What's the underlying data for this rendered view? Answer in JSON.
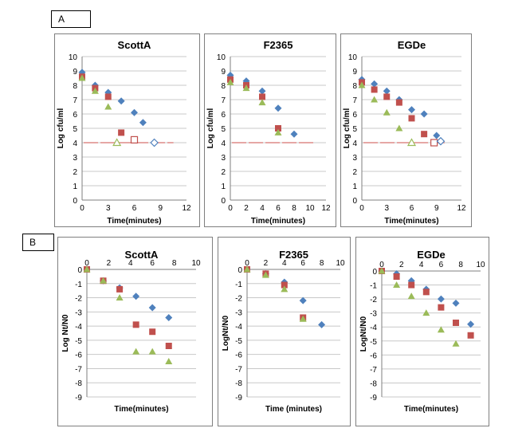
{
  "panel_labels": {
    "A": "A",
    "B": "B"
  },
  "colors": {
    "blue": "#4f81bd",
    "red": "#c0504d",
    "green": "#9bbb59",
    "grid": "#c8c8c8",
    "axis": "#7f7f7f"
  },
  "chart_data": [
    {
      "id": "A-ScottA",
      "type": "scatter",
      "title": "ScottA",
      "xlabel": "Time(minutes)",
      "ylabel": "Log cfu/ml",
      "xlim": [
        0,
        12
      ],
      "ylim": [
        0,
        10
      ],
      "xticks": [
        0,
        3,
        6,
        9,
        12
      ],
      "yticks": [
        0,
        1,
        2,
        3,
        4,
        5,
        6,
        7,
        8,
        9,
        10
      ],
      "series": [
        {
          "name": "blue",
          "marker": "diamond",
          "x": [
            0,
            1.5,
            3,
            4.5,
            6,
            7
          ],
          "y": [
            8.9,
            8.0,
            7.5,
            6.9,
            6.1,
            5.4
          ]
        },
        {
          "name": "red",
          "marker": "square",
          "x": [
            0,
            1.5,
            3,
            4.5
          ],
          "y": [
            8.6,
            7.8,
            7.2,
            4.7
          ]
        },
        {
          "name": "green",
          "marker": "triangle",
          "x": [
            0,
            1.5,
            3
          ],
          "y": [
            8.5,
            7.6,
            6.5
          ]
        },
        {
          "name": "green-open",
          "marker": "triangle-open",
          "x": [
            4
          ],
          "y": [
            4.0
          ]
        },
        {
          "name": "red-open",
          "marker": "square-open",
          "x": [
            6
          ],
          "y": [
            4.2
          ]
        },
        {
          "name": "blue-open",
          "marker": "diamond-open",
          "x": [
            8.3
          ],
          "y": [
            4.0
          ]
        }
      ],
      "detection_limit": {
        "y": 4.0,
        "x_end": 10.5
      }
    },
    {
      "id": "A-F2365",
      "type": "scatter",
      "title": "F2365",
      "xlabel": "Time(minutes)",
      "ylabel": "Log cfu/ml",
      "xlim": [
        0,
        12
      ],
      "ylim": [
        0,
        10
      ],
      "xticks": [
        0,
        2,
        4,
        6,
        8,
        10,
        12
      ],
      "yticks": [
        0,
        1,
        2,
        3,
        4,
        5,
        6,
        7,
        8,
        9,
        10
      ],
      "series": [
        {
          "name": "blue",
          "marker": "diamond",
          "x": [
            0,
            2,
            4,
            6,
            8
          ],
          "y": [
            8.7,
            8.3,
            7.6,
            6.4,
            4.6
          ]
        },
        {
          "name": "red",
          "marker": "square",
          "x": [
            0,
            2,
            4,
            6
          ],
          "y": [
            8.4,
            8.0,
            7.2,
            5.0
          ]
        },
        {
          "name": "green",
          "marker": "triangle",
          "x": [
            0,
            2,
            4,
            6
          ],
          "y": [
            8.2,
            7.8,
            6.8,
            4.7
          ]
        }
      ],
      "detection_limit": {
        "y": 4.0,
        "x_end": 10.5
      }
    },
    {
      "id": "A-EGDe",
      "type": "scatter",
      "title": "EGDe",
      "xlabel": "Time(minutes)",
      "ylabel": "Log cfu/ml",
      "xlim": [
        0,
        12
      ],
      "ylim": [
        0,
        10
      ],
      "xticks": [
        0,
        3,
        6,
        9,
        12
      ],
      "yticks": [
        0,
        1,
        2,
        3,
        4,
        5,
        6,
        7,
        8,
        9,
        10
      ],
      "series": [
        {
          "name": "blue",
          "marker": "diamond",
          "x": [
            0,
            1.5,
            3,
            4.5,
            6,
            7.5,
            9
          ],
          "y": [
            8.4,
            8.1,
            7.6,
            7.0,
            6.3,
            6.0,
            4.5
          ]
        },
        {
          "name": "red",
          "marker": "square",
          "x": [
            0,
            1.5,
            3,
            4.5,
            6,
            7.5
          ],
          "y": [
            8.2,
            7.7,
            7.2,
            6.8,
            5.7,
            4.6
          ]
        },
        {
          "name": "green",
          "marker": "triangle",
          "x": [
            0,
            1.5,
            3,
            4.5
          ],
          "y": [
            8.0,
            7.0,
            6.1,
            5.0
          ]
        },
        {
          "name": "green-open",
          "marker": "triangle-open",
          "x": [
            6
          ],
          "y": [
            4.0
          ]
        },
        {
          "name": "red-open",
          "marker": "square-open",
          "x": [
            8.7
          ],
          "y": [
            4.0
          ]
        },
        {
          "name": "blue-open",
          "marker": "diamond-open",
          "x": [
            9.5
          ],
          "y": [
            4.1
          ]
        }
      ],
      "detection_limit": {
        "y": 4.0,
        "x_end": 10
      }
    },
    {
      "id": "B-ScottA",
      "type": "scatter",
      "title": "ScottA",
      "xlabel": "Time(minutes)",
      "ylabel": "Log Nt/N0",
      "xlim": [
        0,
        10
      ],
      "ylim": [
        -9,
        0
      ],
      "xticks": [
        0,
        2,
        4,
        6,
        8,
        10
      ],
      "yticks": [
        0,
        -1,
        -2,
        -3,
        -4,
        -5,
        -6,
        -7,
        -8,
        -9
      ],
      "series": [
        {
          "name": "blue",
          "marker": "diamond",
          "x": [
            0,
            1.5,
            3,
            4.5,
            6,
            7.5
          ],
          "y": [
            0,
            -0.8,
            -1.3,
            -1.9,
            -2.7,
            -3.4
          ]
        },
        {
          "name": "red",
          "marker": "square",
          "x": [
            0,
            1.5,
            3,
            4.5,
            6,
            7.5
          ],
          "y": [
            0,
            -0.8,
            -1.4,
            -3.9,
            -4.4,
            -5.4
          ]
        },
        {
          "name": "green",
          "marker": "triangle",
          "x": [
            0,
            1.5,
            3,
            4.5,
            6,
            7.5
          ],
          "y": [
            0,
            -0.8,
            -2.0,
            -5.8,
            -5.8,
            -6.5
          ]
        }
      ]
    },
    {
      "id": "B-F2365",
      "type": "scatter",
      "title": "F2365",
      "xlabel": "Time (minutes)",
      "ylabel": "LogNt/N0",
      "xlim": [
        0,
        10
      ],
      "ylim": [
        -9,
        0
      ],
      "xticks": [
        0,
        2,
        4,
        6,
        8,
        10
      ],
      "yticks": [
        0,
        -1,
        -2,
        -3,
        -4,
        -5,
        -6,
        -7,
        -8,
        -9
      ],
      "series": [
        {
          "name": "blue",
          "marker": "diamond",
          "x": [
            0,
            2,
            4,
            6,
            8
          ],
          "y": [
            0,
            -0.3,
            -0.9,
            -2.2,
            -3.9
          ]
        },
        {
          "name": "red",
          "marker": "square",
          "x": [
            0,
            2,
            4,
            6
          ],
          "y": [
            0,
            -0.3,
            -1.1,
            -3.4
          ]
        },
        {
          "name": "green",
          "marker": "triangle",
          "x": [
            0,
            2,
            4,
            6
          ],
          "y": [
            0,
            -0.4,
            -1.4,
            -3.5
          ]
        }
      ]
    },
    {
      "id": "B-EGDe",
      "type": "scatter",
      "title": "EGDe",
      "xlabel": "Time(minutes)",
      "ylabel": "LogNt/N0",
      "xlim": [
        0,
        10
      ],
      "ylim": [
        -9,
        0
      ],
      "xticks": [
        0,
        2,
        4,
        6,
        8,
        10
      ],
      "yticks": [
        0,
        -1,
        -2,
        -3,
        -4,
        -5,
        -6,
        -7,
        -8,
        -9
      ],
      "series": [
        {
          "name": "blue",
          "marker": "diamond",
          "x": [
            0,
            1.5,
            3,
            4.5,
            6,
            7.5,
            9
          ],
          "y": [
            0,
            -0.2,
            -0.7,
            -1.3,
            -2.0,
            -2.3,
            -3.8
          ]
        },
        {
          "name": "red",
          "marker": "square",
          "x": [
            0,
            1.5,
            3,
            4.5,
            6,
            7.5,
            9
          ],
          "y": [
            0,
            -0.4,
            -1.0,
            -1.5,
            -2.6,
            -3.7,
            -4.6
          ]
        },
        {
          "name": "green",
          "marker": "triangle",
          "x": [
            0,
            1.5,
            3,
            4.5,
            6,
            7.5
          ],
          "y": [
            0,
            -1.0,
            -1.8,
            -3.0,
            -4.2,
            -5.2
          ]
        }
      ]
    }
  ]
}
